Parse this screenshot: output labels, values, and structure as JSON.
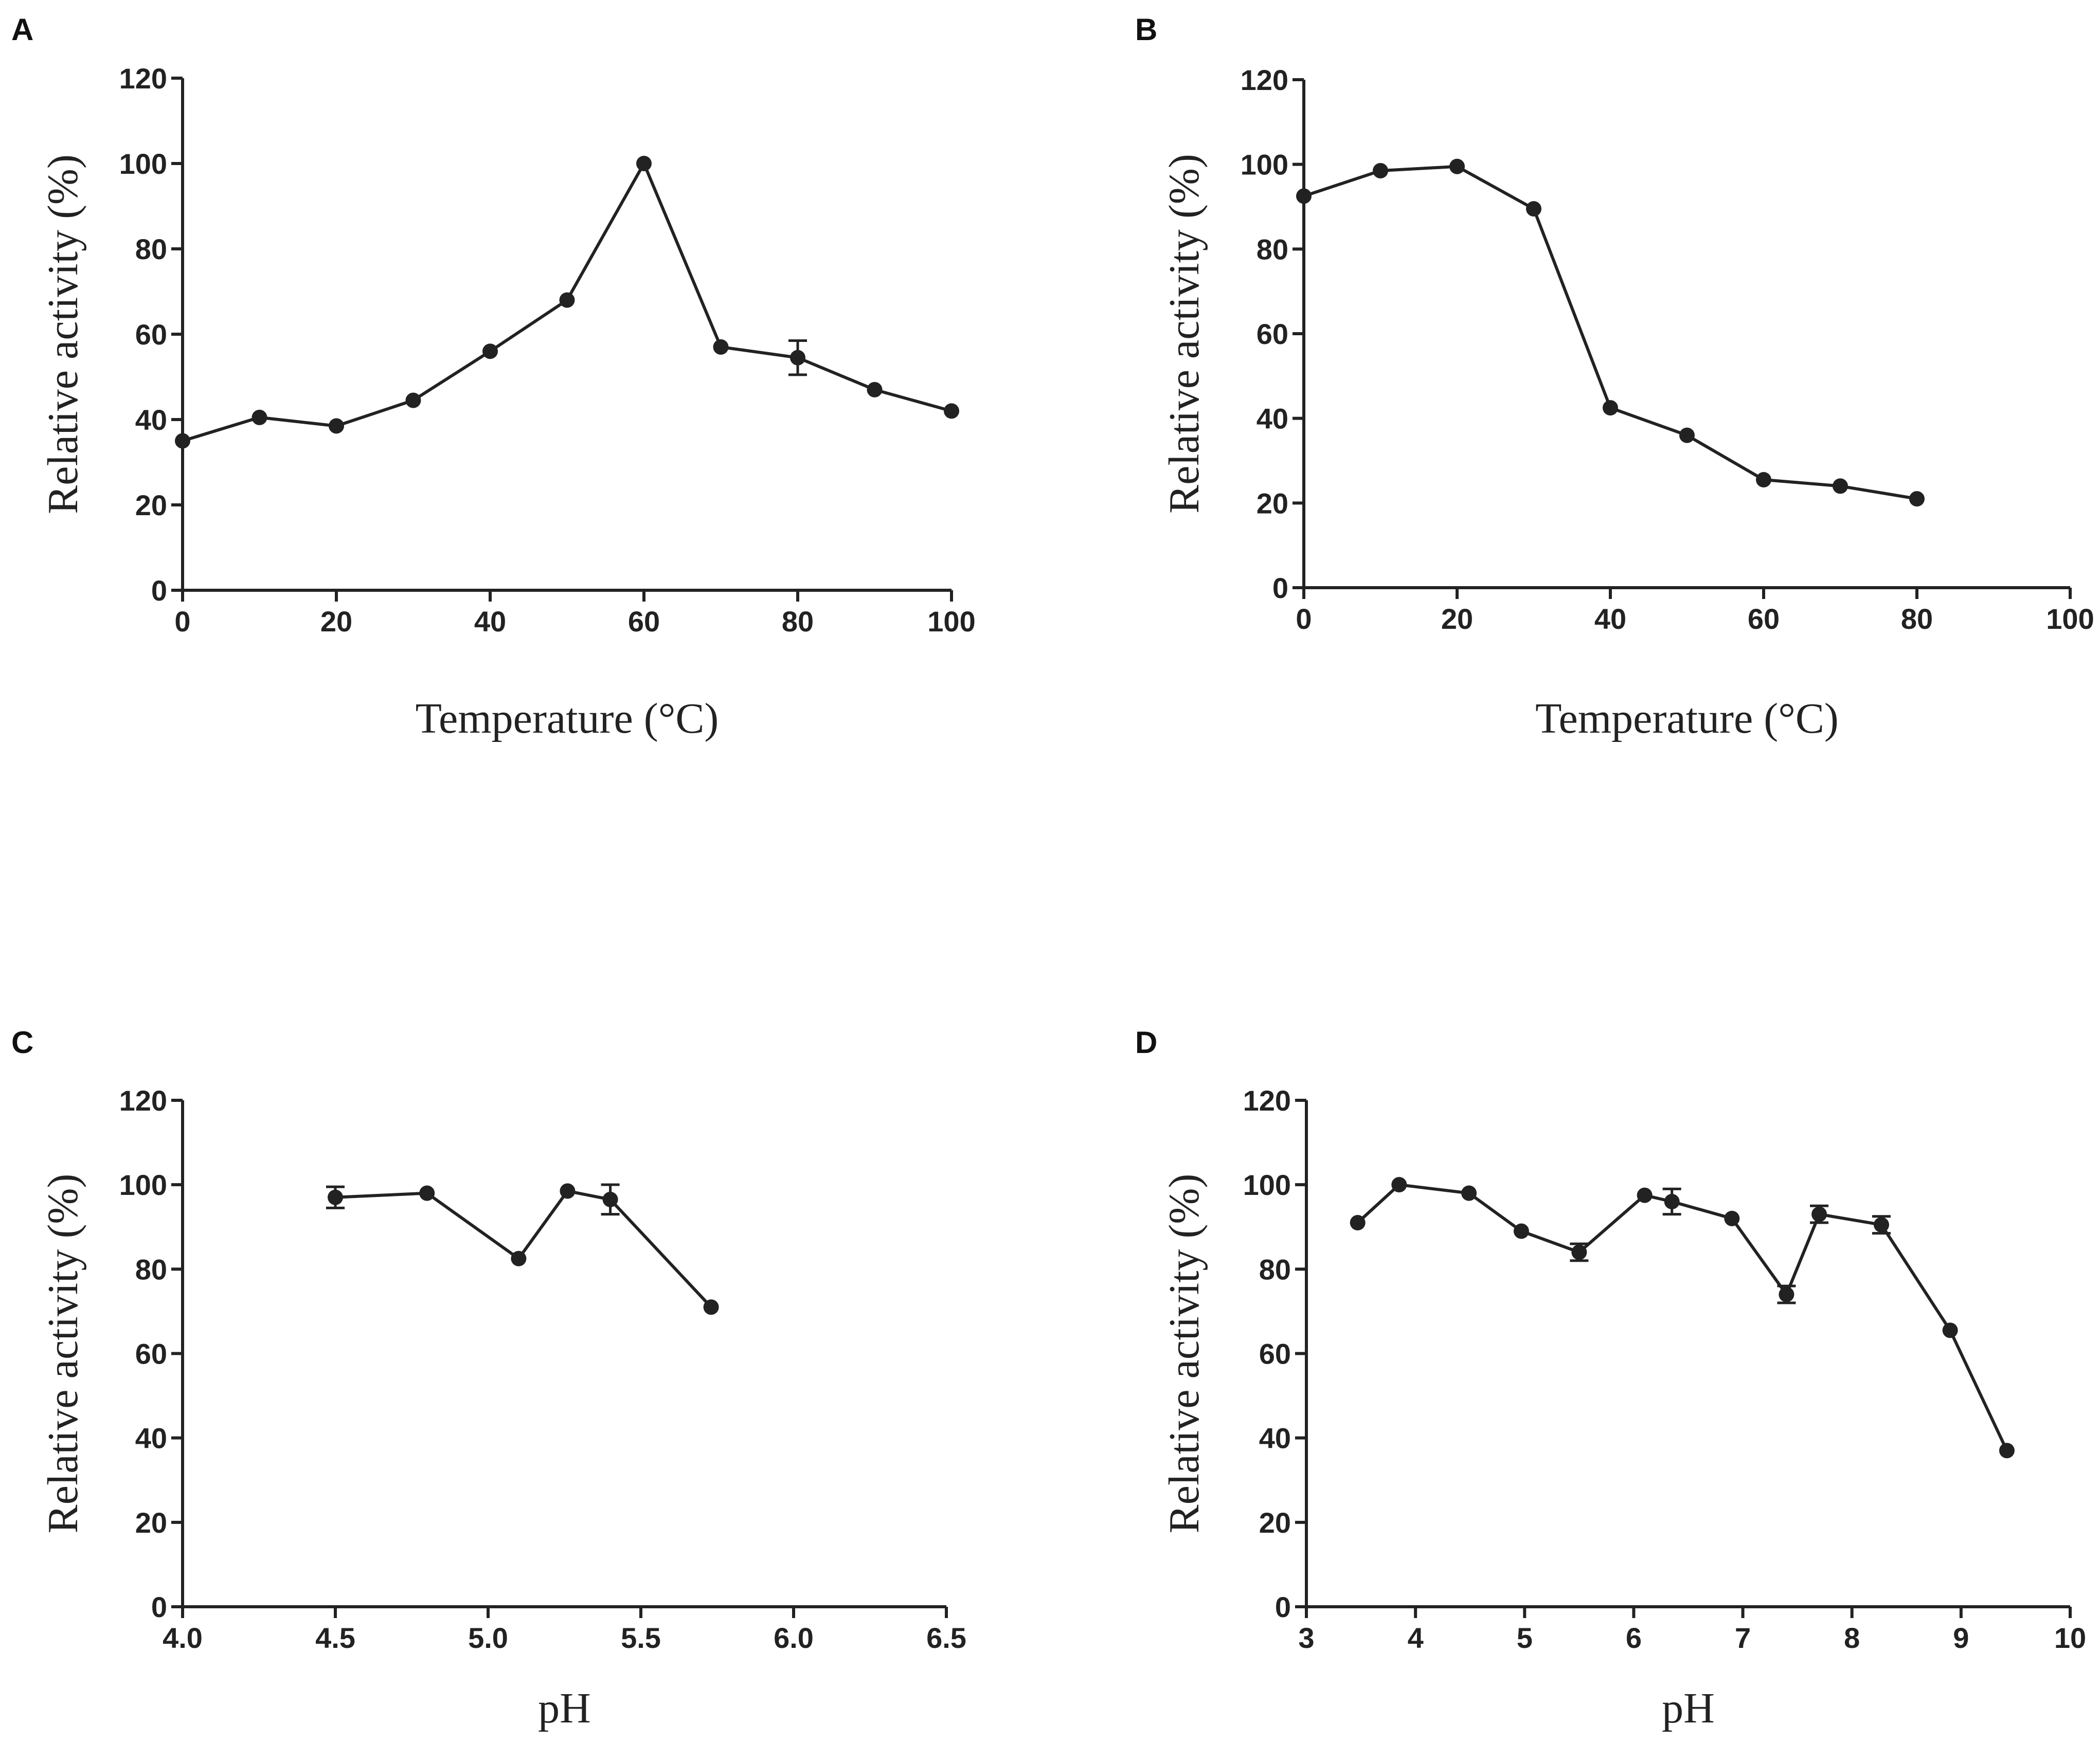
{
  "chart_data": [
    {
      "panel": "A",
      "type": "line",
      "title": "",
      "xlabel": "Temperature (°C)",
      "ylabel": "Relative activity (%)",
      "xlim": [
        0,
        100
      ],
      "ylim": [
        0,
        120
      ],
      "xticks": [
        0,
        20,
        40,
        60,
        80,
        100
      ],
      "xtick_labels": [
        "0",
        "20",
        "40",
        "60",
        "80",
        "100"
      ],
      "yticks": [
        0,
        20,
        40,
        60,
        80,
        100,
        120
      ],
      "ytick_labels": [
        "0",
        "20",
        "40",
        "60",
        "80",
        "100",
        "120"
      ],
      "grid": false,
      "series": [
        {
          "name": "A",
          "x": [
            0,
            10,
            20,
            30,
            40,
            50,
            60,
            70,
            80,
            90,
            100
          ],
          "y": [
            35,
            40.5,
            38.5,
            44.5,
            56,
            68,
            100,
            57,
            54.5,
            47,
            42
          ],
          "error": [
            0,
            0,
            0,
            0,
            0,
            0,
            0,
            0,
            4,
            0,
            0
          ]
        }
      ]
    },
    {
      "panel": "B",
      "type": "line",
      "title": "",
      "xlabel": "Temperature (°C)",
      "ylabel": "Relative activity (%)",
      "xlim": [
        0,
        100
      ],
      "ylim": [
        0,
        120
      ],
      "xticks": [
        0,
        20,
        40,
        60,
        80,
        100
      ],
      "xtick_labels": [
        "0",
        "20",
        "40",
        "60",
        "80",
        "100"
      ],
      "yticks": [
        0,
        20,
        40,
        60,
        80,
        100,
        120
      ],
      "ytick_labels": [
        "0",
        "20",
        "40",
        "60",
        "80",
        "100",
        "120"
      ],
      "grid": false,
      "series": [
        {
          "name": "B",
          "x": [
            0,
            10,
            20,
            30,
            40,
            50,
            60,
            70,
            80
          ],
          "y": [
            92.5,
            98.5,
            99.5,
            89.5,
            42.5,
            36,
            25.5,
            24,
            21
          ],
          "error": [
            0,
            0,
            0,
            0,
            0,
            0,
            0,
            0,
            0
          ]
        }
      ]
    },
    {
      "panel": "C",
      "type": "line",
      "title": "",
      "xlabel": "pH",
      "ylabel": "Relative activity (%)",
      "xlim": [
        4.0,
        6.5
      ],
      "ylim": [
        0,
        120
      ],
      "xticks": [
        4.0,
        4.5,
        5.0,
        5.5,
        6.0,
        6.5
      ],
      "xtick_labels": [
        "4.0",
        "4.5",
        "5.0",
        "5.5",
        "6.0",
        "6.5"
      ],
      "yticks": [
        0,
        20,
        40,
        60,
        80,
        100,
        120
      ],
      "ytick_labels": [
        "0",
        "20",
        "40",
        "60",
        "80",
        "100",
        "120"
      ],
      "grid": false,
      "series": [
        {
          "name": "C",
          "x": [
            4.5,
            4.8,
            5.1,
            5.26,
            5.4,
            5.73
          ],
          "y": [
            97,
            98,
            82.5,
            98.5,
            96.5,
            71
          ],
          "error": [
            2.5,
            0,
            0,
            0,
            3.5,
            0
          ]
        }
      ]
    },
    {
      "panel": "D",
      "type": "line",
      "title": "",
      "xlabel": "pH",
      "ylabel": "Relative activity (%)",
      "xlim": [
        3,
        10
      ],
      "ylim": [
        0,
        120
      ],
      "xticks": [
        3,
        4,
        5,
        6,
        7,
        8,
        9,
        10
      ],
      "xtick_labels": [
        "3",
        "4",
        "5",
        "6",
        "7",
        "8",
        "9",
        "10"
      ],
      "yticks": [
        0,
        20,
        40,
        60,
        80,
        100,
        120
      ],
      "ytick_labels": [
        "0",
        "20",
        "40",
        "60",
        "80",
        "100",
        "120"
      ],
      "grid": false,
      "series": [
        {
          "name": "D",
          "x": [
            3.47,
            3.85,
            4.49,
            4.97,
            5.5,
            6.1,
            6.35,
            6.9,
            7.4,
            7.7,
            8.27,
            8.9,
            9.42
          ],
          "y": [
            91,
            100,
            98,
            89,
            84,
            97.5,
            96,
            92,
            74,
            93,
            90.5,
            65.5,
            37
          ],
          "error": [
            0,
            0,
            0,
            0,
            2,
            0,
            3,
            0,
            2,
            2,
            2,
            0,
            0
          ]
        }
      ]
    }
  ]
}
